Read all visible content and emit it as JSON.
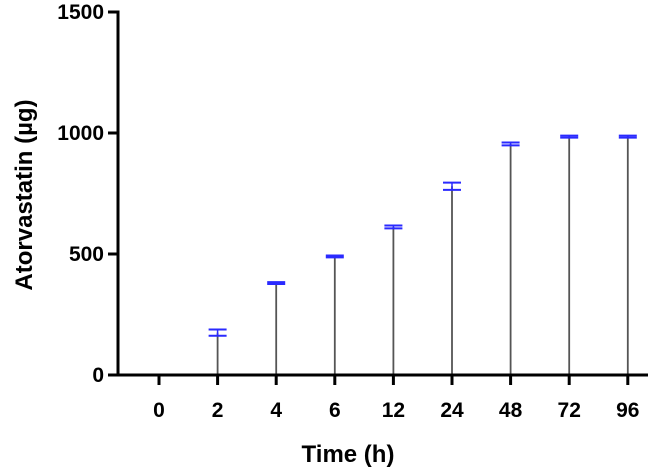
{
  "chart_data": {
    "type": "bar",
    "xlabel": "Time (h)",
    "ylabel": "Atorvastatin (µg)",
    "ylim": [
      0,
      1500
    ],
    "yticks": [
      0,
      500,
      1000,
      1500
    ],
    "categories": [
      "0",
      "2",
      "4",
      "6",
      "12",
      "24",
      "48",
      "72",
      "96"
    ],
    "values": [
      0,
      175,
      380,
      490,
      612,
      780,
      955,
      985,
      985
    ],
    "errors": [
      0,
      13,
      4,
      4,
      6,
      15,
      6,
      4,
      4
    ],
    "grid": false,
    "colors": {
      "bar": "#555555",
      "error_bar": "#2a2aff",
      "axis": "#000000"
    }
  }
}
